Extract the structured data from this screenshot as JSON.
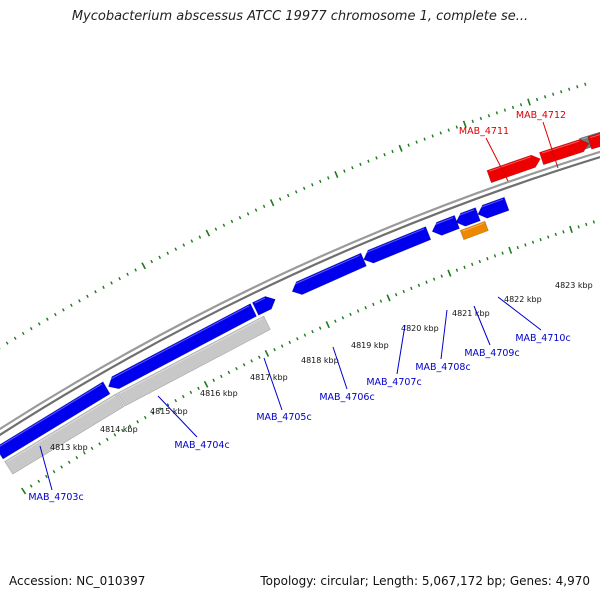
{
  "title": "Mycobacterium abscessus ATCC 19977 chromosome 1, complete se...",
  "footer": {
    "accession": "Accession: NC_010397",
    "summary": "Topology: circular; Length: 5,067,172 bp; Genes: 4,970"
  },
  "colors": {
    "forward_cds": "#ee0000",
    "reverse_cds": "#0000ee",
    "misc_feature": "#ee8800",
    "gray_feature": "#777777",
    "light_gray_feature": "#c8c8c8",
    "backbone": "#888888",
    "tick": "#1d7a1d",
    "forward_label": "#dd0000",
    "reverse_label": "#0000cc"
  },
  "tick_labels": [
    "4813 kbp",
    "4814 kbp",
    "4815 kbp",
    "4816 kbp",
    "4817 kbp",
    "4818 kbp",
    "4819 kbp",
    "4820 kbp",
    "4821 kbp",
    "4822 kbp",
    "4823 kbp"
  ],
  "gene_labels": {
    "forward": [
      "MAB_4711",
      "MAB_4712"
    ],
    "reverse": [
      "MAB_4703c",
      "MAB_4704c",
      "MAB_4705c",
      "MAB_4706c",
      "MAB_4707c",
      "MAB_4708c",
      "MAB_4709c",
      "MAB_4710c"
    ]
  }
}
